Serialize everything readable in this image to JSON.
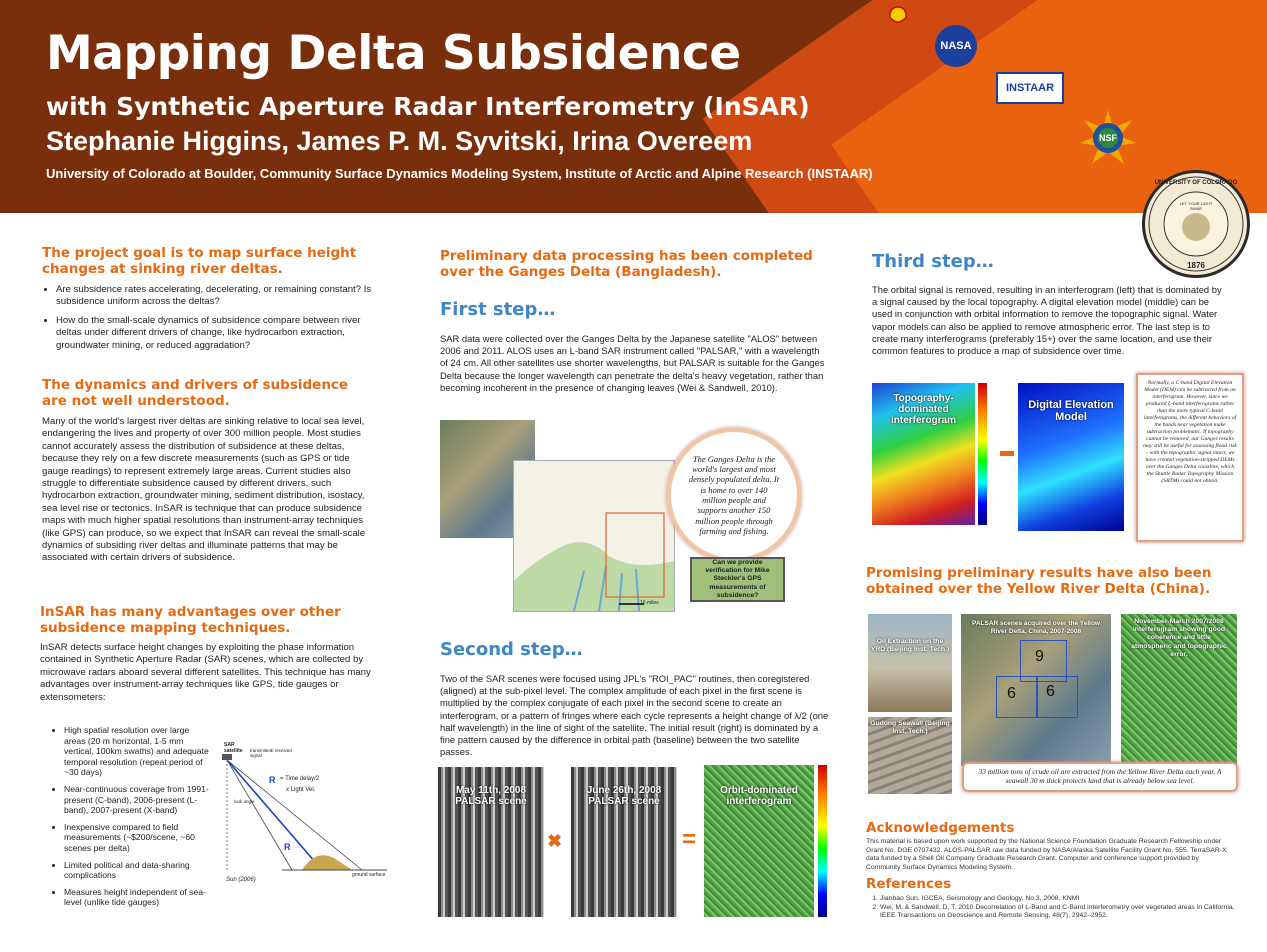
{
  "header": {
    "title": "Mapping Delta Subsidence",
    "subtitle": "with Synthetic Aperture Radar Interferometry (InSAR)",
    "authors": "Stephanie Higgins, James P. M. Syvitski, Irina Overeem",
    "institution": "University of Colorado at Boulder, Community Surface Dynamics Modeling System, Institute of Arctic and Alpine Research  (INSTAAR)",
    "logos": {
      "nasa": "NASA",
      "instaar": "INSTAAR",
      "nsf": "NSF",
      "cu_seal_top": "UNIVERSITY OF COLORADO",
      "cu_seal_motto": "LET YOUR LIGHT SHINE",
      "cu_seal_year": "1876"
    }
  },
  "left": {
    "h1": "The project goal is to map surface height changes at sinking river deltas.",
    "bullets1": [
      "Are subsidence rates accelerating, decelerating, or remaining constant? Is subsidence uniform across the deltas?",
      "How do the small-scale dynamics of subsidence compare between river deltas under different drivers of change, like hydrocarbon extraction, groundwater mining, or reduced aggradation?"
    ],
    "h2": "The dynamics and drivers of subsidence are not well understood.",
    "p2": "Many of the world's largest river deltas are sinking relative to local sea level, endangering the lives and property of over 300 million people. Most studies cannot accurately assess the distribution of subsidence at these deltas, because they rely on a few discrete measurements (such as GPS or tide gauge readings) to represent extremely large areas. Current studies also struggle to differentiate subsidence caused by different drivers, such hydrocarbon extraction, groundwater mining, sediment distribution, isostacy, sea level rise or tectonics. InSAR is technique that can produce subsidence maps with much higher spatial resolutions than instrument-array techniques (like GPS) can produce, so we expect that InSAR can reveal the small-scale dynamics of subsiding river deltas and illuminate patterns that may be associated with certain drivers of subsidence.",
    "h3": "InSAR has many advantages over other subsidence mapping techniques.",
    "p3": "InSAR detects surface height changes by exploiting the phase information contained in Synthetic Aperture Radar (SAR) scenes, which are collected by microwave radars aboard several different satellites. This technique has many advantages over instrument-array techniques like GPS, tide gauges or extensometers:",
    "bullets3": [
      "High spatial resolution over large areas (20 m horizontal, 1-5 mm vertical, 100km swaths) and adequate temporal resolution (repeat period of ~30 days)",
      "Near-continuous coverage from 1991-present (C-band), 2006-present (L-band), 2007-present (X-band)",
      "Inexpensive compared to field measurements (~$200/scene, ~60 scenes per delta)",
      "Limited political and data-sharing complications",
      "Measures height independent of sea-level (unlike tide gauges)"
    ],
    "diagram": {
      "sat_label": "SAR satellite",
      "signal": "transmitted/ received signal",
      "r": "R",
      "time": "= Time delay/2",
      "light": "x Light Vel.",
      "look": "look angle",
      "r2": "R",
      "sun": "Sun (2006)",
      "ground": "ground surface"
    }
  },
  "middle": {
    "h1": "Preliminary data processing has been completed over the Ganges Delta (Bangladesh).",
    "step1": "First step…",
    "p1": "SAR data were collected over the Ganges Delta by the Japanese satellite \"ALOS\" between 2006 and 2011.  ALOS uses an L-band SAR instrument called \"PALSAR,\" with a wavelength of 24 cm. All other satellites use shorter wavelengths, but PALSAR is suitable for the Ganges Delta because the longer wavelength can penetrate the delta's heavy vegetation, rather than becoming incoherent in the presence of changing leaves (Wei & Sandwell, 2010).",
    "callout": "The Ganges Delta is the world's largest and most densely populated delta. It is home to over 140 million people and supports another 150 million people through farming and fishing.",
    "scale": "10 miles",
    "verify": "Can we provide verification for Mike Steckler's GPS measurements of subsidence?",
    "step2": "Second step…",
    "p2": "Two of the SAR scenes were focused using JPL's \"ROI_PAC\" routines, then coregistered (aligned) at the sub-pixel level. The complex amplitude of each pixel in the first scene is multiplied by the complex conjugate of each pixel in the second scene to create an interferogram, or a pattern of fringes where each cycle represents a height change of λ/2 (one half wavelength) in the line of sight of the satellite. The initial result (right)  is dominated by a fine pattern caused by the difference in orbital path (baseline) between the two satellite passes.",
    "img1": "May 11th, 2008 PALSAR scene",
    "img2": "June 26th, 2008 PALSAR scene",
    "img3": "Orbit-dominated interferogram",
    "times": "✖",
    "equals": "="
  },
  "right": {
    "step3": "Third step…",
    "p3": "The orbital signal is removed, resulting in an interferogram (left) that is dominated by a signal caused by the local topography.   A digital elevation model (middle) can be used in conjunction with orbital information to remove the topographic signal. Water vapor models can also be applied to remove atmospheric error. The last step is to create many interferograms (preferably 15+) over the same location, and use their common features to produce a map of subsidence over time.",
    "imgA": "Topography-dominated interferogram",
    "imgB": "Digital Elevation Model",
    "minus": "−",
    "note": "Normally, a C-band Digital Elevation Model (DEM) can be subtracted from an interferogram. However, since we produced L-band interferograms rather than the more typical C-band interferograms, the different behaviors of the bands near vegetation make subtraction problematic. If topography cannot be removed, our Ganges results may still be useful for assessing flood risk – with the topographic signal intact, we have created vegetation-stripped DEMs over the Ganges Delta coastline, which the Shuttle Radar Topography Mission (SRTM) could not obtain.",
    "h2": "Promising preliminary results have also been obtained over the Yellow River Delta (China).",
    "oil": "Oil Extraction on the YRD (Beijing Inst. Tech.)",
    "seawall": "Gudong Seawall (Beijing Inst. Tech.)",
    "palsar": "PALSAR scenes acquired over the Yellow River Delta, China, 2007-2008",
    "nov": "November-March 2007/2008 interferogram showing good coherence and little atmospheric and topographic error.",
    "n9": "9",
    "n6a": "6",
    "n6b": "6",
    "yrd_callout": "33 million tons of crude oil are extracted from the Yellow River Delta each year. A seawall 30 m thick protects land that is already below sea level.",
    "ack_h": "Acknowledgements",
    "ack": "This material is based upon work supported by the National Science Foundation Graduate Research Fellowship under Grant No. DGE 0707432. ALOS-PALSAR raw data funded by NASA/Alaska Satellite Facility Grant No. 555. TerraSAR-X data funded by a Shell Oil Company Graduate Research Grant. Computer and conference support provided by Community Surface Dynamics Modeling System.",
    "ref_h": "References",
    "refs": [
      "Jianbao Sun, IGCEA, Seismology and Geology, No.3, 2008. KNMI",
      "Wei, M. & Sandwell, D. T. 2010 Decorrelation of L-Band and C-Band interferometry over vegetated areas in California. IEEE Transactions on Geoscience and Remote Sensing, 48(7), 2942–2952."
    ]
  },
  "colors": {
    "banner": "#7a2f0c",
    "accent_orange": "#e56a12",
    "accent_blue": "#3e86c6"
  }
}
